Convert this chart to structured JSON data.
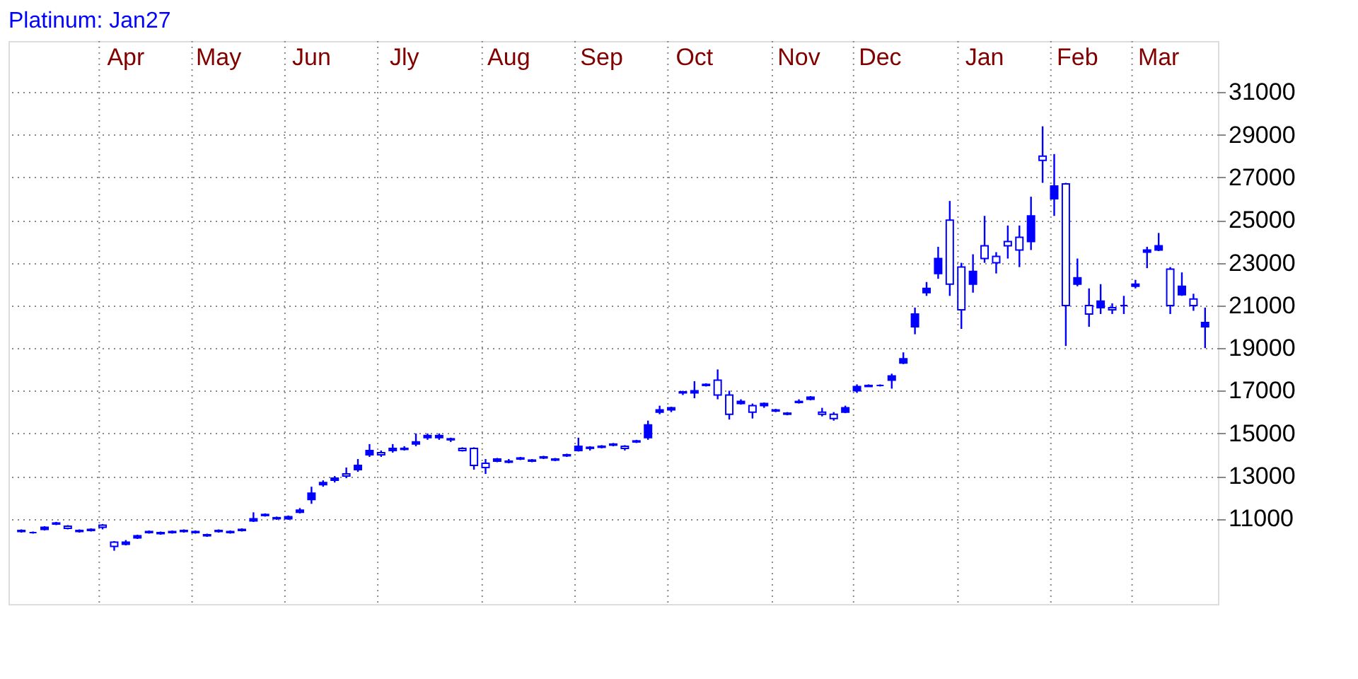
{
  "chart_data": {
    "type": "candlestick",
    "title": "Platinum: Jan27",
    "categories": [
      null,
      null,
      null,
      null,
      null,
      null,
      null,
      null,
      null,
      "Apr",
      null,
      null,
      null,
      null,
      null,
      null,
      null,
      "May",
      null,
      null,
      null,
      null,
      null,
      null,
      null,
      "Jun",
      null,
      null,
      null,
      null,
      null,
      null,
      null,
      "Jly",
      null,
      null,
      null,
      null,
      null,
      null,
      null,
      null,
      "Aug",
      null,
      null,
      null,
      null,
      null,
      null,
      null,
      "Sep",
      null,
      null,
      null,
      null,
      null,
      null,
      null,
      "Oct",
      null,
      null,
      null,
      null,
      null,
      null,
      null,
      null,
      "Nov",
      null,
      null,
      null,
      null,
      null,
      null,
      "Dec",
      null,
      null,
      null,
      null,
      null,
      null,
      null,
      null,
      "Jan",
      null,
      null,
      null,
      null,
      null,
      null,
      null,
      "Feb",
      null,
      null,
      null,
      null,
      null,
      null,
      "Mar",
      null,
      null,
      null,
      null
    ],
    "ohlc": [
      [
        10450,
        10500,
        10350,
        10400
      ],
      [
        10350,
        10400,
        10300,
        10350
      ],
      [
        10500,
        10650,
        10450,
        10600
      ],
      [
        10750,
        10850,
        10700,
        10800
      ],
      [
        10650,
        10700,
        10500,
        10550
      ],
      [
        10450,
        10500,
        10350,
        10400
      ],
      [
        10450,
        10550,
        10400,
        10500
      ],
      [
        10700,
        10750,
        10500,
        10600
      ],
      [
        9900,
        9950,
        9500,
        9700
      ],
      [
        9800,
        10000,
        9750,
        9900
      ],
      [
        10100,
        10250,
        10050,
        10200
      ],
      [
        10350,
        10450,
        10300,
        10400
      ],
      [
        10350,
        10400,
        10250,
        10300
      ],
      [
        10350,
        10450,
        10300,
        10400
      ],
      [
        10400,
        10500,
        10350,
        10450
      ],
      [
        10400,
        10450,
        10300,
        10350
      ],
      [
        10250,
        10300,
        10150,
        10200
      ],
      [
        10400,
        10500,
        10350,
        10450
      ],
      [
        10400,
        10450,
        10300,
        10350
      ],
      [
        10450,
        10550,
        10400,
        10500
      ],
      [
        10900,
        11300,
        10850,
        11000
      ],
      [
        11150,
        11250,
        11100,
        11200
      ],
      [
        11050,
        11100,
        10950,
        11000
      ],
      [
        11000,
        11150,
        10950,
        11100
      ],
      [
        11300,
        11500,
        11250,
        11400
      ],
      [
        11900,
        12500,
        11700,
        12200
      ],
      [
        12600,
        12800,
        12500,
        12700
      ],
      [
        12800,
        13000,
        12700,
        12900
      ],
      [
        13100,
        13400,
        12900,
        13000
      ],
      [
        13300,
        13800,
        13200,
        13500
      ],
      [
        14000,
        14500,
        13900,
        14200
      ],
      [
        14100,
        14200,
        13900,
        14000
      ],
      [
        14200,
        14500,
        14100,
        14300
      ],
      [
        14250,
        14400,
        14200,
        14300
      ],
      [
        14500,
        15000,
        14400,
        14600
      ],
      [
        14800,
        15000,
        14700,
        14900
      ],
      [
        14800,
        15000,
        14700,
        14900
      ],
      [
        14750,
        14800,
        14600,
        14700
      ],
      [
        14300,
        14350,
        14150,
        14200
      ],
      [
        14300,
        14350,
        13300,
        13500
      ],
      [
        13600,
        13800,
        13100,
        13400
      ],
      [
        13700,
        13850,
        13650,
        13800
      ],
      [
        13650,
        13800,
        13600,
        13700
      ],
      [
        13800,
        13900,
        13750,
        13850
      ],
      [
        13700,
        13800,
        13650,
        13750
      ],
      [
        13850,
        13950,
        13800,
        13900
      ],
      [
        13750,
        13850,
        13700,
        13800
      ],
      [
        13950,
        14050,
        13900,
        14000
      ],
      [
        14200,
        14800,
        14150,
        14400
      ],
      [
        14350,
        14400,
        14200,
        14300
      ],
      [
        14350,
        14450,
        14300,
        14400
      ],
      [
        14450,
        14550,
        14400,
        14500
      ],
      [
        14400,
        14450,
        14200,
        14300
      ],
      [
        14600,
        14700,
        14550,
        14650
      ],
      [
        14800,
        15600,
        14700,
        15400
      ],
      [
        16000,
        16300,
        15900,
        16100
      ],
      [
        16100,
        16250,
        16000,
        16200
      ],
      [
        16950,
        17000,
        16800,
        16900
      ],
      [
        16900,
        17450,
        16650,
        17000
      ],
      [
        17250,
        17350,
        17200,
        17300
      ],
      [
        17500,
        18000,
        16600,
        16800
      ],
      [
        16800,
        17000,
        15650,
        15900
      ],
      [
        16400,
        16600,
        16350,
        16500
      ],
      [
        16300,
        16400,
        15700,
        16000
      ],
      [
        16300,
        16450,
        16200,
        16400
      ],
      [
        16050,
        16150,
        16000,
        16100
      ],
      [
        15950,
        16000,
        15850,
        15900
      ],
      [
        16450,
        16600,
        16400,
        16500
      ],
      [
        16600,
        16750,
        16550,
        16700
      ],
      [
        16000,
        16200,
        15800,
        15900
      ],
      [
        15900,
        16000,
        15600,
        15700
      ],
      [
        16000,
        16300,
        15950,
        16200
      ],
      [
        17000,
        17300,
        16900,
        17200
      ],
      [
        17200,
        17300,
        17200,
        17250
      ],
      [
        17250,
        17300,
        17200,
        17250
      ],
      [
        17500,
        17800,
        17100,
        17700
      ],
      [
        18300,
        18800,
        18250,
        18500
      ],
      [
        20000,
        20900,
        19650,
        20600
      ],
      [
        21600,
        22100,
        21450,
        21800
      ],
      [
        22500,
        23750,
        22250,
        23200
      ],
      [
        25000,
        25900,
        21450,
        22000
      ],
      [
        22800,
        23000,
        19900,
        20800
      ],
      [
        22000,
        23400,
        21600,
        22600
      ],
      [
        23800,
        25200,
        23000,
        23200
      ],
      [
        23300,
        23500,
        22500,
        23000
      ],
      [
        24000,
        24750,
        23200,
        23800
      ],
      [
        24200,
        24750,
        22800,
        23600
      ],
      [
        24000,
        26100,
        23600,
        25200
      ],
      [
        28000,
        29400,
        26750,
        27800
      ],
      [
        26000,
        28100,
        25200,
        26600
      ],
      [
        26700,
        26750,
        19100,
        21000
      ],
      [
        22000,
        23200,
        21900,
        22300
      ],
      [
        21000,
        21800,
        20000,
        20600
      ],
      [
        20900,
        22000,
        20600,
        21200
      ],
      [
        20900,
        21100,
        20600,
        20800
      ],
      [
        21000,
        21450,
        20600,
        21000
      ],
      [
        21900,
        22200,
        21800,
        22000
      ],
      [
        23500,
        23750,
        22750,
        23600
      ],
      [
        23600,
        24400,
        23550,
        23800
      ],
      [
        22700,
        22800,
        20600,
        21000
      ],
      [
        21500,
        22550,
        21450,
        21900
      ],
      [
        21300,
        21550,
        20750,
        21000
      ],
      [
        20000,
        20900,
        19000,
        20200
      ]
    ],
    "color": "#0000ff",
    "ylim": [
      7000,
      33400
    ],
    "yticks": [
      11000,
      13000,
      15000,
      17000,
      19000,
      21000,
      23000,
      25000,
      27000,
      29000,
      31000
    ],
    "grid": true
  }
}
